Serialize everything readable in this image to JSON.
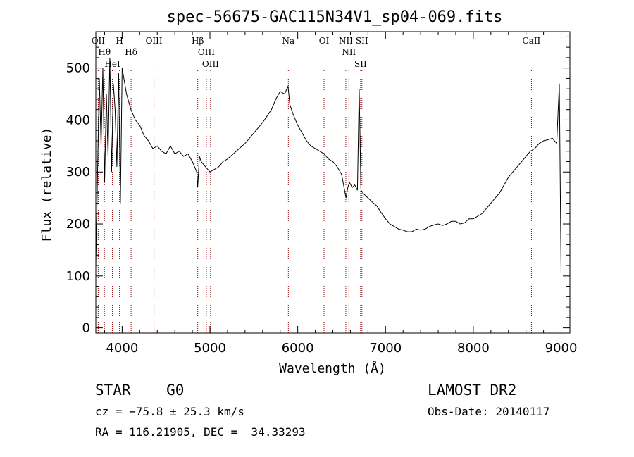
{
  "chart_data": {
    "type": "line",
    "title": "spec-56675-GAC115N34V1_sp04-069.fits",
    "xlabel": "Wavelength (Å)",
    "ylabel": "Flux (relative)",
    "xlim": [
      3700,
      9100
    ],
    "ylim": [
      -10,
      570
    ],
    "xticks": [
      4000,
      5000,
      6000,
      7000,
      8000,
      9000
    ],
    "xtick_labels": [
      "4000",
      "5000",
      "6000",
      "7000",
      "8000",
      "9000"
    ],
    "yticks": [
      0,
      100,
      200,
      300,
      400,
      500
    ],
    "ytick_labels": [
      "0",
      "100",
      "200",
      "300",
      "400",
      "500"
    ],
    "grid": false,
    "series": [
      {
        "x": [
          3700,
          3720,
          3740,
          3760,
          3780,
          3800,
          3820,
          3840,
          3860,
          3880,
          3900,
          3920,
          3940,
          3960,
          3980,
          4000,
          4050,
          4100,
          4150,
          4200,
          4250,
          4300,
          4350,
          4400,
          4450,
          4500,
          4550,
          4600,
          4650,
          4700,
          4750,
          4800,
          4850,
          4860,
          4880,
          4900,
          4950,
          5000,
          5050,
          5100,
          5150,
          5200,
          5300,
          5400,
          5500,
          5600,
          5700,
          5750,
          5800,
          5850,
          5890,
          5910,
          5950,
          6000,
          6050,
          6100,
          6150,
          6200,
          6250,
          6300,
          6350,
          6400,
          6450,
          6500,
          6550,
          6570,
          6590,
          6620,
          6650,
          6680,
          6700,
          6720,
          6750,
          6800,
          6850,
          6900,
          6950,
          7000,
          7050,
          7100,
          7150,
          7200,
          7250,
          7300,
          7350,
          7400,
          7450,
          7500,
          7550,
          7600,
          7650,
          7700,
          7750,
          7800,
          7850,
          7900,
          7950,
          8000,
          8050,
          8100,
          8150,
          8200,
          8250,
          8300,
          8350,
          8400,
          8450,
          8500,
          8550,
          8600,
          8650,
          8700,
          8750,
          8800,
          8850,
          8900,
          8950,
          8980,
          9000
        ],
        "y": [
          120,
          300,
          480,
          350,
          500,
          280,
          450,
          330,
          520,
          300,
          470,
          420,
          310,
          490,
          240,
          500,
          450,
          420,
          400,
          390,
          370,
          360,
          345,
          350,
          340,
          335,
          350,
          335,
          340,
          330,
          335,
          320,
          300,
          270,
          330,
          320,
          310,
          300,
          305,
          310,
          320,
          325,
          340,
          355,
          375,
          395,
          420,
          440,
          455,
          450,
          465,
          430,
          410,
          390,
          375,
          360,
          350,
          345,
          340,
          335,
          325,
          320,
          310,
          295,
          250,
          270,
          280,
          270,
          275,
          265,
          460,
          265,
          258,
          250,
          242,
          235,
          222,
          210,
          200,
          195,
          190,
          188,
          185,
          185,
          190,
          188,
          190,
          195,
          198,
          200,
          197,
          200,
          205,
          205,
          200,
          202,
          210,
          210,
          215,
          220,
          230,
          240,
          250,
          260,
          275,
          290,
          300,
          310,
          320,
          330,
          340,
          345,
          355,
          360,
          362,
          365,
          355,
          470,
          100
        ]
      }
    ],
    "annotations": [
      {
        "label": "OII",
        "x": 3727
      },
      {
        "label": "Hθ",
        "x": 3798
      },
      {
        "label": "HeI",
        "x": 3889
      },
      {
        "label": "H",
        "x": 3970
      },
      {
        "label": "Hδ",
        "x": 4102
      },
      {
        "label": "OIII",
        "x": 4363
      },
      {
        "label": "Hβ",
        "x": 4861
      },
      {
        "label": "OIII",
        "x": 4959
      },
      {
        "label": "OIII",
        "x": 5007
      },
      {
        "label": "Na",
        "x": 5893
      },
      {
        "label": "OI",
        "x": 6300
      },
      {
        "label": "NII",
        "x": 6548
      },
      {
        "label": "NII",
        "x": 6583
      },
      {
        "label": "SII",
        "x": 6716
      },
      {
        "label": "SII",
        "x": 6731
      },
      {
        "label": "CaII",
        "x": 8662
      }
    ]
  },
  "footer": {
    "classification": "STAR    G0",
    "redshift": "cz = −75.8 ± 25.3 km/s",
    "coords": "RA = 116.21905, DEC =  34.33293",
    "survey": "LAMOST DR2",
    "obs_date": "Obs-Date: 20140117"
  },
  "colors": {
    "line": "#000000",
    "line_markers": "#8b0000"
  }
}
